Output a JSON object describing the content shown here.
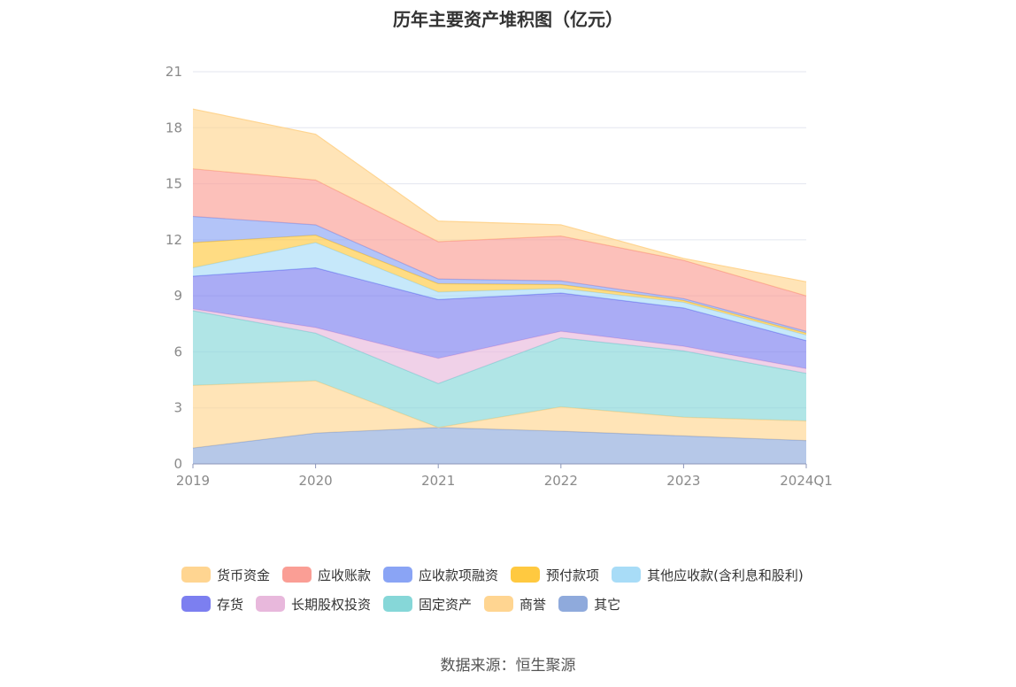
{
  "title": "历年主要资产堆积图（亿元）",
  "source": "数据来源：恒生聚源",
  "chart_data": {
    "type": "area",
    "stacked": true,
    "categories": [
      "2019",
      "2020",
      "2021",
      "2022",
      "2023",
      "2024Q1"
    ],
    "ylim": [
      0,
      21
    ],
    "yticks": [
      "0",
      "3",
      "6",
      "9",
      "12",
      "15",
      "18",
      "21"
    ],
    "grid": true,
    "legend_position": "bottom",
    "series": [
      {
        "name": "其它",
        "color": "#8faadc",
        "values": [
          0.85,
          1.65,
          1.95,
          1.75,
          1.5,
          1.25
        ]
      },
      {
        "name": "商誉",
        "color": "#ffd591",
        "values": [
          3.35,
          2.8,
          0.0,
          1.3,
          1.0,
          1.05
        ]
      },
      {
        "name": "固定资产",
        "color": "#86d7d8",
        "values": [
          4.0,
          2.55,
          2.35,
          3.7,
          3.55,
          2.55
        ]
      },
      {
        "name": "长期股权投资",
        "color": "#e8b8dc",
        "values": [
          0.1,
          0.3,
          1.35,
          0.35,
          0.25,
          0.25
        ]
      },
      {
        "name": "存货",
        "color": "#7c7ff0",
        "values": [
          1.75,
          3.2,
          3.15,
          2.05,
          2.05,
          1.5
        ]
      },
      {
        "name": "其他应收款(含利息和股利)",
        "color": "#a8dcf7",
        "values": [
          0.45,
          1.35,
          0.4,
          0.25,
          0.3,
          0.3
        ]
      },
      {
        "name": "预付款项",
        "color": "#ffc940",
        "values": [
          1.35,
          0.4,
          0.45,
          0.2,
          0.1,
          0.1
        ]
      },
      {
        "name": "应收款项融资",
        "color": "#8aa4f5",
        "values": [
          1.4,
          0.55,
          0.25,
          0.2,
          0.1,
          0.1
        ]
      },
      {
        "name": "应收账款",
        "color": "#fa9e95",
        "values": [
          2.55,
          2.4,
          2.0,
          2.4,
          2.05,
          1.9
        ]
      },
      {
        "name": "货币资金",
        "color": "#ffd591",
        "values": [
          3.2,
          2.45,
          1.1,
          0.6,
          0.1,
          0.75
        ]
      }
    ],
    "legend_rows": [
      [
        "货币资金",
        "应收账款",
        "应收款项融资",
        "预付款项",
        "其他应收款(含利息和股利)"
      ],
      [
        "存货",
        "长期股权投资",
        "固定资产",
        "商誉",
        "其它"
      ]
    ]
  }
}
